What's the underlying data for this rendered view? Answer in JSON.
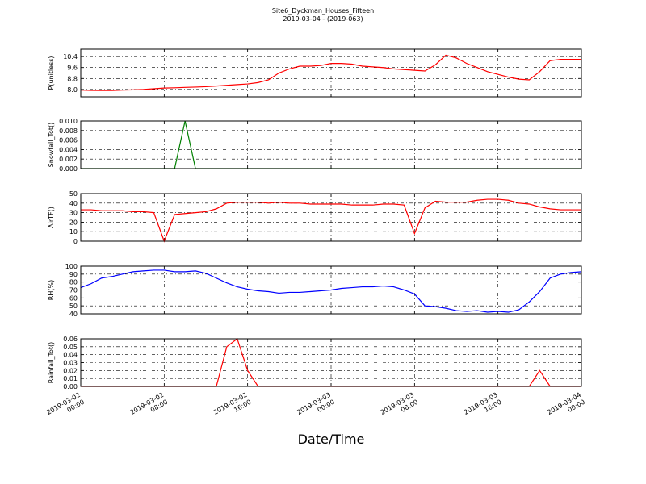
{
  "chart_data": {
    "type": "line",
    "title": "Site6_Dyckman_Houses_Fifteen",
    "subtitle": "2019-03-04 - (2019-063)",
    "xlabel": "Date/Time",
    "grid": true,
    "xlim": [
      "2019-03-02 00:00",
      "2019-03-04 00:00"
    ],
    "xticks": [
      "2019-03-02 00:00",
      "2019-03-02 08:00",
      "2019-03-02 16:00",
      "2019-03-03 00:00",
      "2019-03-03 08:00",
      "2019-03-03 16:00",
      "2019-03-04 00:00"
    ],
    "x": [
      "2019-03-02 00:00",
      "2019-03-02 01:00",
      "2019-03-02 02:00",
      "2019-03-02 03:00",
      "2019-03-02 04:00",
      "2019-03-02 05:00",
      "2019-03-02 06:00",
      "2019-03-02 07:00",
      "2019-03-02 08:00",
      "2019-03-02 09:00",
      "2019-03-02 10:00",
      "2019-03-02 11:00",
      "2019-03-02 12:00",
      "2019-03-02 13:00",
      "2019-03-02 14:00",
      "2019-03-02 15:00",
      "2019-03-02 16:00",
      "2019-03-02 17:00",
      "2019-03-02 18:00",
      "2019-03-02 19:00",
      "2019-03-02 20:00",
      "2019-03-02 21:00",
      "2019-03-02 22:00",
      "2019-03-02 23:00",
      "2019-03-03 00:00",
      "2019-03-03 01:00",
      "2019-03-03 02:00",
      "2019-03-03 03:00",
      "2019-03-03 04:00",
      "2019-03-03 05:00",
      "2019-03-03 06:00",
      "2019-03-03 07:00",
      "2019-03-03 08:00",
      "2019-03-03 09:00",
      "2019-03-03 10:00",
      "2019-03-03 11:00",
      "2019-03-03 12:00",
      "2019-03-03 13:00",
      "2019-03-03 14:00",
      "2019-03-03 15:00",
      "2019-03-03 16:00",
      "2019-03-03 17:00",
      "2019-03-03 18:00",
      "2019-03-03 19:00",
      "2019-03-03 20:00",
      "2019-03-03 21:00",
      "2019-03-03 22:00",
      "2019-03-03 23:00",
      "2019-03-04 00:00"
    ],
    "panels": [
      {
        "ylabel": "P(unitless)",
        "ylim": [
          7.46,
          10.94
        ],
        "yticks": [
          {
            "value": 8.0,
            "label": "8.0"
          },
          8.8,
          9.6,
          10.4
        ],
        "series": [
          {
            "color": "#ff0000",
            "values": [
              7.95,
              7.93,
              7.92,
              7.92,
              7.95,
              7.97,
              8.0,
              8.05,
              8.1,
              8.12,
              8.15,
              8.17,
              8.2,
              8.25,
              8.3,
              8.35,
              8.4,
              8.5,
              8.7,
              9.2,
              9.5,
              9.7,
              9.7,
              9.75,
              9.9,
              9.9,
              9.85,
              9.7,
              9.65,
              9.6,
              9.5,
              9.45,
              9.4,
              9.35,
              9.8,
              10.5,
              10.3,
              9.9,
              9.6,
              9.3,
              9.1,
              8.9,
              8.75,
              8.7,
              9.3,
              10.1,
              10.2,
              10.2,
              10.2
            ]
          }
        ]
      },
      {
        "ylabel": "Snowfall_Tot()",
        "ylim": [
          0,
          0.01
        ],
        "yticks": [
          {
            "value": 0,
            "label": "0.000"
          },
          {
            "value": 0.002,
            "label": "0.002"
          },
          {
            "value": 0.004,
            "label": "0.004"
          },
          {
            "value": 0.006,
            "label": "0.006"
          },
          {
            "value": 0.008,
            "label": "0.008"
          },
          {
            "value": 0.01,
            "label": "0.010"
          }
        ],
        "series": [
          {
            "color": "#008000",
            "values": [
              0,
              0,
              0,
              0,
              0,
              0,
              0,
              0,
              0,
              0,
              0.01,
              0,
              0,
              0,
              0,
              0,
              0,
              0,
              0,
              0,
              0,
              0,
              0,
              0,
              0,
              0,
              0,
              0,
              0,
              0,
              0,
              0,
              0,
              0,
              0,
              0,
              0,
              0,
              0,
              0,
              0,
              0,
              0,
              0,
              0,
              0,
              0,
              0,
              0
            ]
          }
        ]
      },
      {
        "ylabel": "AirTF()",
        "ylim": [
          0,
          50
        ],
        "yticks": [
          0,
          10,
          20,
          30,
          40,
          50
        ],
        "series": [
          {
            "color": "#ff0000",
            "values": [
              33,
              33,
              32,
              32,
              32,
              31,
              31,
              30,
              0,
              28,
              29,
              30,
              31,
              34,
              40,
              41,
              41,
              41,
              40,
              41,
              40,
              40,
              39,
              39,
              39,
              39,
              38,
              38,
              38,
              39,
              39,
              38,
              8,
              35,
              42,
              41,
              41,
              41,
              43,
              44,
              44,
              43,
              40,
              39,
              36,
              34,
              33,
              33,
              33
            ]
          }
        ]
      },
      {
        "ylabel": "RH(%)",
        "ylim": [
          40,
          100
        ],
        "yticks": [
          40,
          50,
          60,
          70,
          80,
          90,
          100
        ],
        "series": [
          {
            "color": "#0000ff",
            "values": [
              73,
              78,
              85,
              87,
              90,
              93,
              94,
              95,
              95,
              93,
              93,
              94,
              91,
              85,
              79,
              74,
              71,
              69,
              68,
              66,
              67,
              67,
              68,
              69,
              70,
              72,
              73,
              74,
              74,
              75,
              74,
              70,
              65,
              50,
              49,
              47,
              44,
              43,
              44,
              42,
              43,
              42,
              45,
              55,
              68,
              85,
              90,
              92,
              93
            ]
          }
        ]
      },
      {
        "ylabel": "Rainfall_Tot()",
        "ylim": [
          0,
          0.06
        ],
        "yticks": [
          {
            "value": 0,
            "label": "0.00"
          },
          {
            "value": 0.01,
            "label": "0.01"
          },
          {
            "value": 0.02,
            "label": "0.02"
          },
          {
            "value": 0.03,
            "label": "0.03"
          },
          {
            "value": 0.04,
            "label": "0.04"
          },
          {
            "value": 0.05,
            "label": "0.05"
          },
          {
            "value": 0.06,
            "label": "0.06"
          }
        ],
        "series": [
          {
            "color": "#ff0000",
            "values": [
              0,
              0,
              0,
              0,
              0,
              0,
              0,
              0,
              0,
              0,
              0,
              0,
              0,
              0,
              0.05,
              0.06,
              0.02,
              0,
              0,
              0,
              0,
              0,
              0,
              0,
              0,
              0,
              0,
              0,
              0,
              0,
              0,
              0,
              0,
              0,
              0,
              0,
              0,
              0,
              0,
              0,
              0,
              0,
              0,
              0,
              0.02,
              0,
              0,
              0,
              0
            ]
          }
        ]
      }
    ]
  }
}
